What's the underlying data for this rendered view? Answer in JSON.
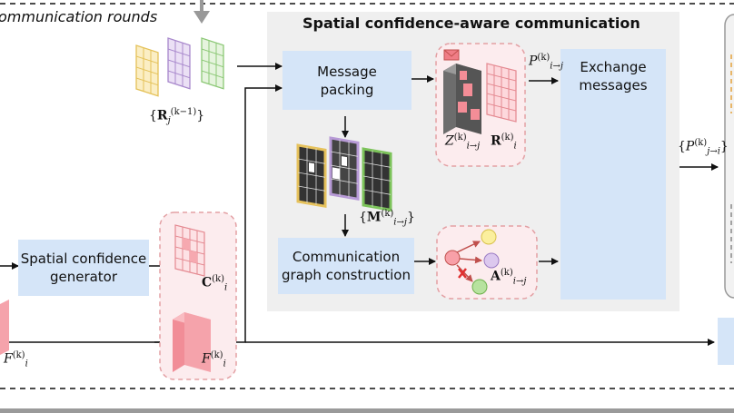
{
  "header": {
    "rounds_label": "ommunication rounds"
  },
  "panel": {
    "title": "Spatial confidence-aware communication"
  },
  "blocks": {
    "message_packing": [
      "Message",
      "packing"
    ],
    "exchange_messages": [
      "Exchange",
      "messages"
    ],
    "graph_construction": [
      "Communication",
      "graph construction"
    ],
    "confidence_generator": [
      "Spatial confidence",
      "generator"
    ]
  },
  "symbols": {
    "R_prev": {
      "open": "{",
      "base": "R",
      "sub": "j",
      "sup": "(k−1)",
      "close": "}"
    },
    "R_i": {
      "base": "R",
      "sub": "i",
      "sup": "(k)"
    },
    "Z": {
      "base": "Z",
      "sub": "i→j",
      "sup": "(k)"
    },
    "P_ij": {
      "base": "P",
      "sub": "i→j",
      "sup": "(k)"
    },
    "P_ji": {
      "open": "{",
      "base": "P",
      "sub": "j→i",
      "sup": "(k)",
      "close": "}"
    },
    "M": {
      "open": "{",
      "base": "M",
      "sub": "i→j",
      "sup": "(k)",
      "close": "}"
    },
    "A": {
      "base": "A",
      "sub": "i→j",
      "sup": "(k)"
    },
    "C": {
      "base": "C",
      "sub": "i",
      "sup": "(k)"
    },
    "F_mid": {
      "base": "F",
      "sub": "i",
      "sup": "(k)"
    },
    "F_left": {
      "base": "F",
      "sub": "i",
      "sup": "(k)"
    }
  },
  "colors": {
    "block_fill": "#d5e5f8",
    "panel_fill": "#efefef",
    "dashed_outline": "#e3a0a4",
    "pink_fill": "#fcecee",
    "grid_red": "#f6b1b5",
    "grid_yellow": "#f5dc8e",
    "grid_purple": "#c9b2e4",
    "grid_green": "#b7e0a4",
    "car_red": "#f08080",
    "car_yellow": "#f4d166",
    "car_green": "#9fd888",
    "car_purple": "#c6a8de"
  }
}
